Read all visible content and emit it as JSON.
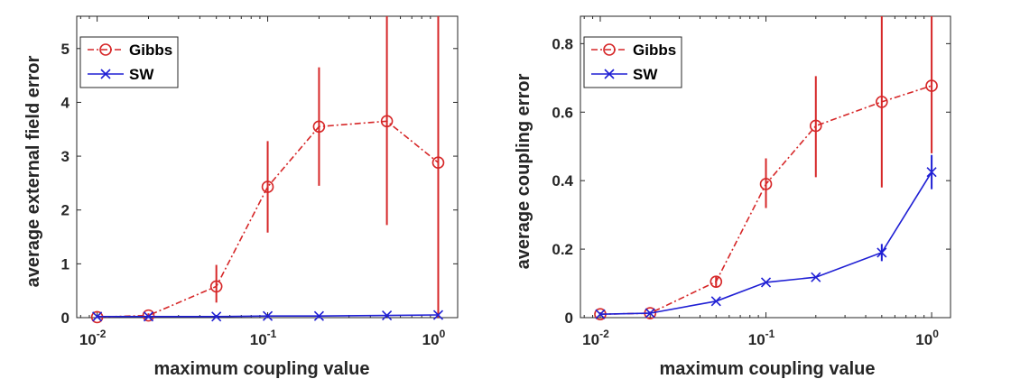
{
  "chart_data": [
    {
      "type": "line",
      "xscale": "log",
      "xlim": [
        0.00759,
        1.3
      ],
      "ylim": [
        0,
        5.6
      ],
      "xlabel": "maximum coupling value",
      "ylabel": "average external field error",
      "ytick_values": [
        0,
        1,
        2,
        3,
        4,
        5
      ],
      "ytick_labels": [
        "0",
        "1",
        "2",
        "3",
        "4",
        "5"
      ],
      "xticks": [
        {
          "value": 0.01,
          "base": "10",
          "exp": "-2"
        },
        {
          "value": 0.1,
          "base": "10",
          "exp": "-1"
        },
        {
          "value": 1,
          "base": "10",
          "exp": "0"
        }
      ],
      "legend_position": "top-left",
      "series": [
        {
          "name": "Gibbs",
          "color": "#d62728",
          "line_style": "dash-dot",
          "marker": "circle",
          "x": [
            0.01,
            0.02,
            0.05,
            0.1,
            0.2,
            0.5,
            1
          ],
          "y": [
            0.01,
            0.04,
            0.58,
            2.43,
            3.55,
            3.65,
            2.88
          ],
          "err_low": [
            0.0,
            0.0,
            0.28,
            1.58,
            2.45,
            1.72,
            0.0
          ],
          "err_high": [
            0.02,
            0.08,
            0.98,
            3.28,
            4.65,
            5.6,
            5.6
          ]
        },
        {
          "name": "SW",
          "color": "#1f1fd4",
          "line_style": "solid",
          "marker": "x",
          "x": [
            0.01,
            0.02,
            0.05,
            0.1,
            0.2,
            0.5,
            1
          ],
          "y": [
            0.02,
            0.02,
            0.02,
            0.03,
            0.03,
            0.04,
            0.05
          ],
          "err_low": [
            0.02,
            0.02,
            0.02,
            0.03,
            0.03,
            0.04,
            0.05
          ],
          "err_high": [
            0.02,
            0.02,
            0.02,
            0.03,
            0.03,
            0.04,
            0.05
          ]
        }
      ]
    },
    {
      "type": "line",
      "xscale": "log",
      "xlim": [
        0.00759,
        1.3
      ],
      "ylim": [
        0,
        0.88
      ],
      "xlabel": "maximum coupling value",
      "ylabel": "average coupling error",
      "ytick_values": [
        0,
        0.2,
        0.4,
        0.6,
        0.8
      ],
      "ytick_labels": [
        "0",
        "0.2",
        "0.4",
        "0.6",
        "0.8"
      ],
      "xticks": [
        {
          "value": 0.01,
          "base": "10",
          "exp": "-2"
        },
        {
          "value": 0.1,
          "base": "10",
          "exp": "-1"
        },
        {
          "value": 1,
          "base": "10",
          "exp": "0"
        }
      ],
      "legend_position": "top-left",
      "series": [
        {
          "name": "Gibbs",
          "color": "#d62728",
          "line_style": "dash-dot",
          "marker": "circle",
          "x": [
            0.01,
            0.02,
            0.05,
            0.1,
            0.2,
            0.5,
            1
          ],
          "y": [
            0.01,
            0.013,
            0.105,
            0.39,
            0.56,
            0.63,
            0.677
          ],
          "err_low": [
            0.005,
            0.008,
            0.09,
            0.32,
            0.41,
            0.38,
            0.48
          ],
          "err_high": [
            0.015,
            0.018,
            0.12,
            0.465,
            0.705,
            0.88,
            0.88
          ]
        },
        {
          "name": "SW",
          "color": "#1f1fd4",
          "line_style": "solid",
          "marker": "x",
          "x": [
            0.01,
            0.02,
            0.05,
            0.1,
            0.2,
            0.5,
            1
          ],
          "y": [
            0.01,
            0.013,
            0.048,
            0.103,
            0.118,
            0.19,
            0.425
          ],
          "err_low": [
            0.01,
            0.013,
            0.048,
            0.103,
            0.118,
            0.165,
            0.375
          ],
          "err_high": [
            0.01,
            0.013,
            0.048,
            0.103,
            0.118,
            0.215,
            0.475
          ]
        }
      ]
    }
  ]
}
